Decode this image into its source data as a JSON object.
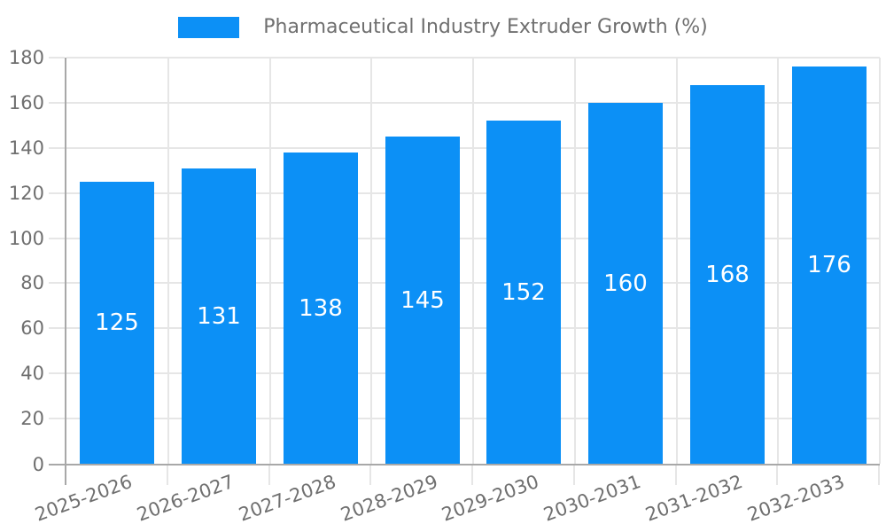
{
  "legend": {
    "label": "Pharmaceutical Industry Extruder Growth (%)",
    "swatch_color": "#0c90f6"
  },
  "chart_data": {
    "type": "bar",
    "title": "Pharmaceutical Industry Extruder Growth (%)",
    "series_name": "Pharmaceutical Industry Extruder Growth (%)",
    "categories": [
      "2025-2026",
      "2026-2027",
      "2027-2028",
      "2028-2029",
      "2029-2030",
      "2030-2031",
      "2031-2032",
      "2032-2033"
    ],
    "values": [
      125,
      131,
      138,
      145,
      152,
      160,
      168,
      176
    ],
    "value_labels": [
      "125",
      "131",
      "138",
      "145",
      "152",
      "160",
      "168",
      "176"
    ],
    "xlabel": "",
    "ylabel": "",
    "ylim": [
      0,
      180
    ],
    "ytick_step": 20,
    "yticks": [
      0,
      20,
      40,
      60,
      80,
      100,
      120,
      140,
      160,
      180
    ],
    "grid": true,
    "legend_position": "top",
    "x_label_rotation_deg": -20,
    "bar_color": "#0c90f6",
    "value_label_color": "#ffffff"
  },
  "style": {
    "background": "#ffffff",
    "bar_color": "#0c90f6",
    "axis_color": "#a8a8a8",
    "grid_color": "#e6e6e6",
    "text_color": "#6f6f6f"
  }
}
